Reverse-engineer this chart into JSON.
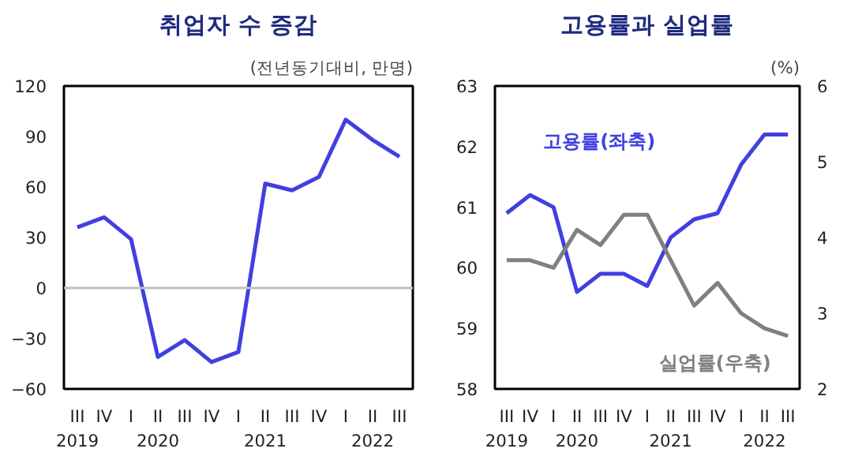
{
  "chart_data": [
    {
      "type": "line",
      "title": "취업자 수 증감",
      "subtitle": "(전년동기대비, 만명)",
      "categories": [
        "III\n2019",
        "IV",
        "I",
        "II\n2020",
        "III",
        "IV",
        "I",
        "II\n2021",
        "III",
        "IV",
        "I",
        "II\n2022",
        "III"
      ],
      "series": [
        {
          "color": "#4040e0",
          "values": [
            36,
            42,
            29,
            -41,
            -31,
            -44,
            -38,
            62,
            58,
            66,
            100,
            88,
            78
          ]
        }
      ],
      "ylim": [
        -60,
        120
      ],
      "yticks": [
        -60,
        -30,
        0,
        30,
        60,
        90,
        120
      ],
      "ref_lines": [
        {
          "axis": "y",
          "value": 0,
          "color": "#c0c0c0"
        }
      ],
      "grid": false
    },
    {
      "type": "line",
      "title": "고용률과 실업률",
      "y2label": "(%)",
      "categories": [
        "III\n2019",
        "IV",
        "I",
        "II\n2020",
        "III",
        "IV",
        "I",
        "II\n2021",
        "III",
        "IV",
        "I",
        "II\n2022",
        "III"
      ],
      "series": [
        {
          "name": "고용률(좌축)",
          "color": "#4040e0",
          "values": [
            60.9,
            61.2,
            61.0,
            59.6,
            59.9,
            59.9,
            59.7,
            60.5,
            60.8,
            60.9,
            61.7,
            62.2,
            62.2
          ]
        },
        {
          "name": "실업률(우축)",
          "color": "#808080",
          "axis": "y2",
          "values": [
            3.7,
            3.7,
            3.6,
            4.1,
            3.9,
            4.3,
            4.3,
            3.7,
            3.1,
            3.4,
            3.0,
            2.8,
            2.7
          ]
        }
      ],
      "ylim": [
        58,
        63
      ],
      "yticks": [
        58,
        59,
        60,
        61,
        62,
        63
      ],
      "y2lim": [
        2,
        6
      ],
      "y2ticks": [
        2,
        3,
        4,
        5,
        6
      ],
      "grid": false
    }
  ]
}
